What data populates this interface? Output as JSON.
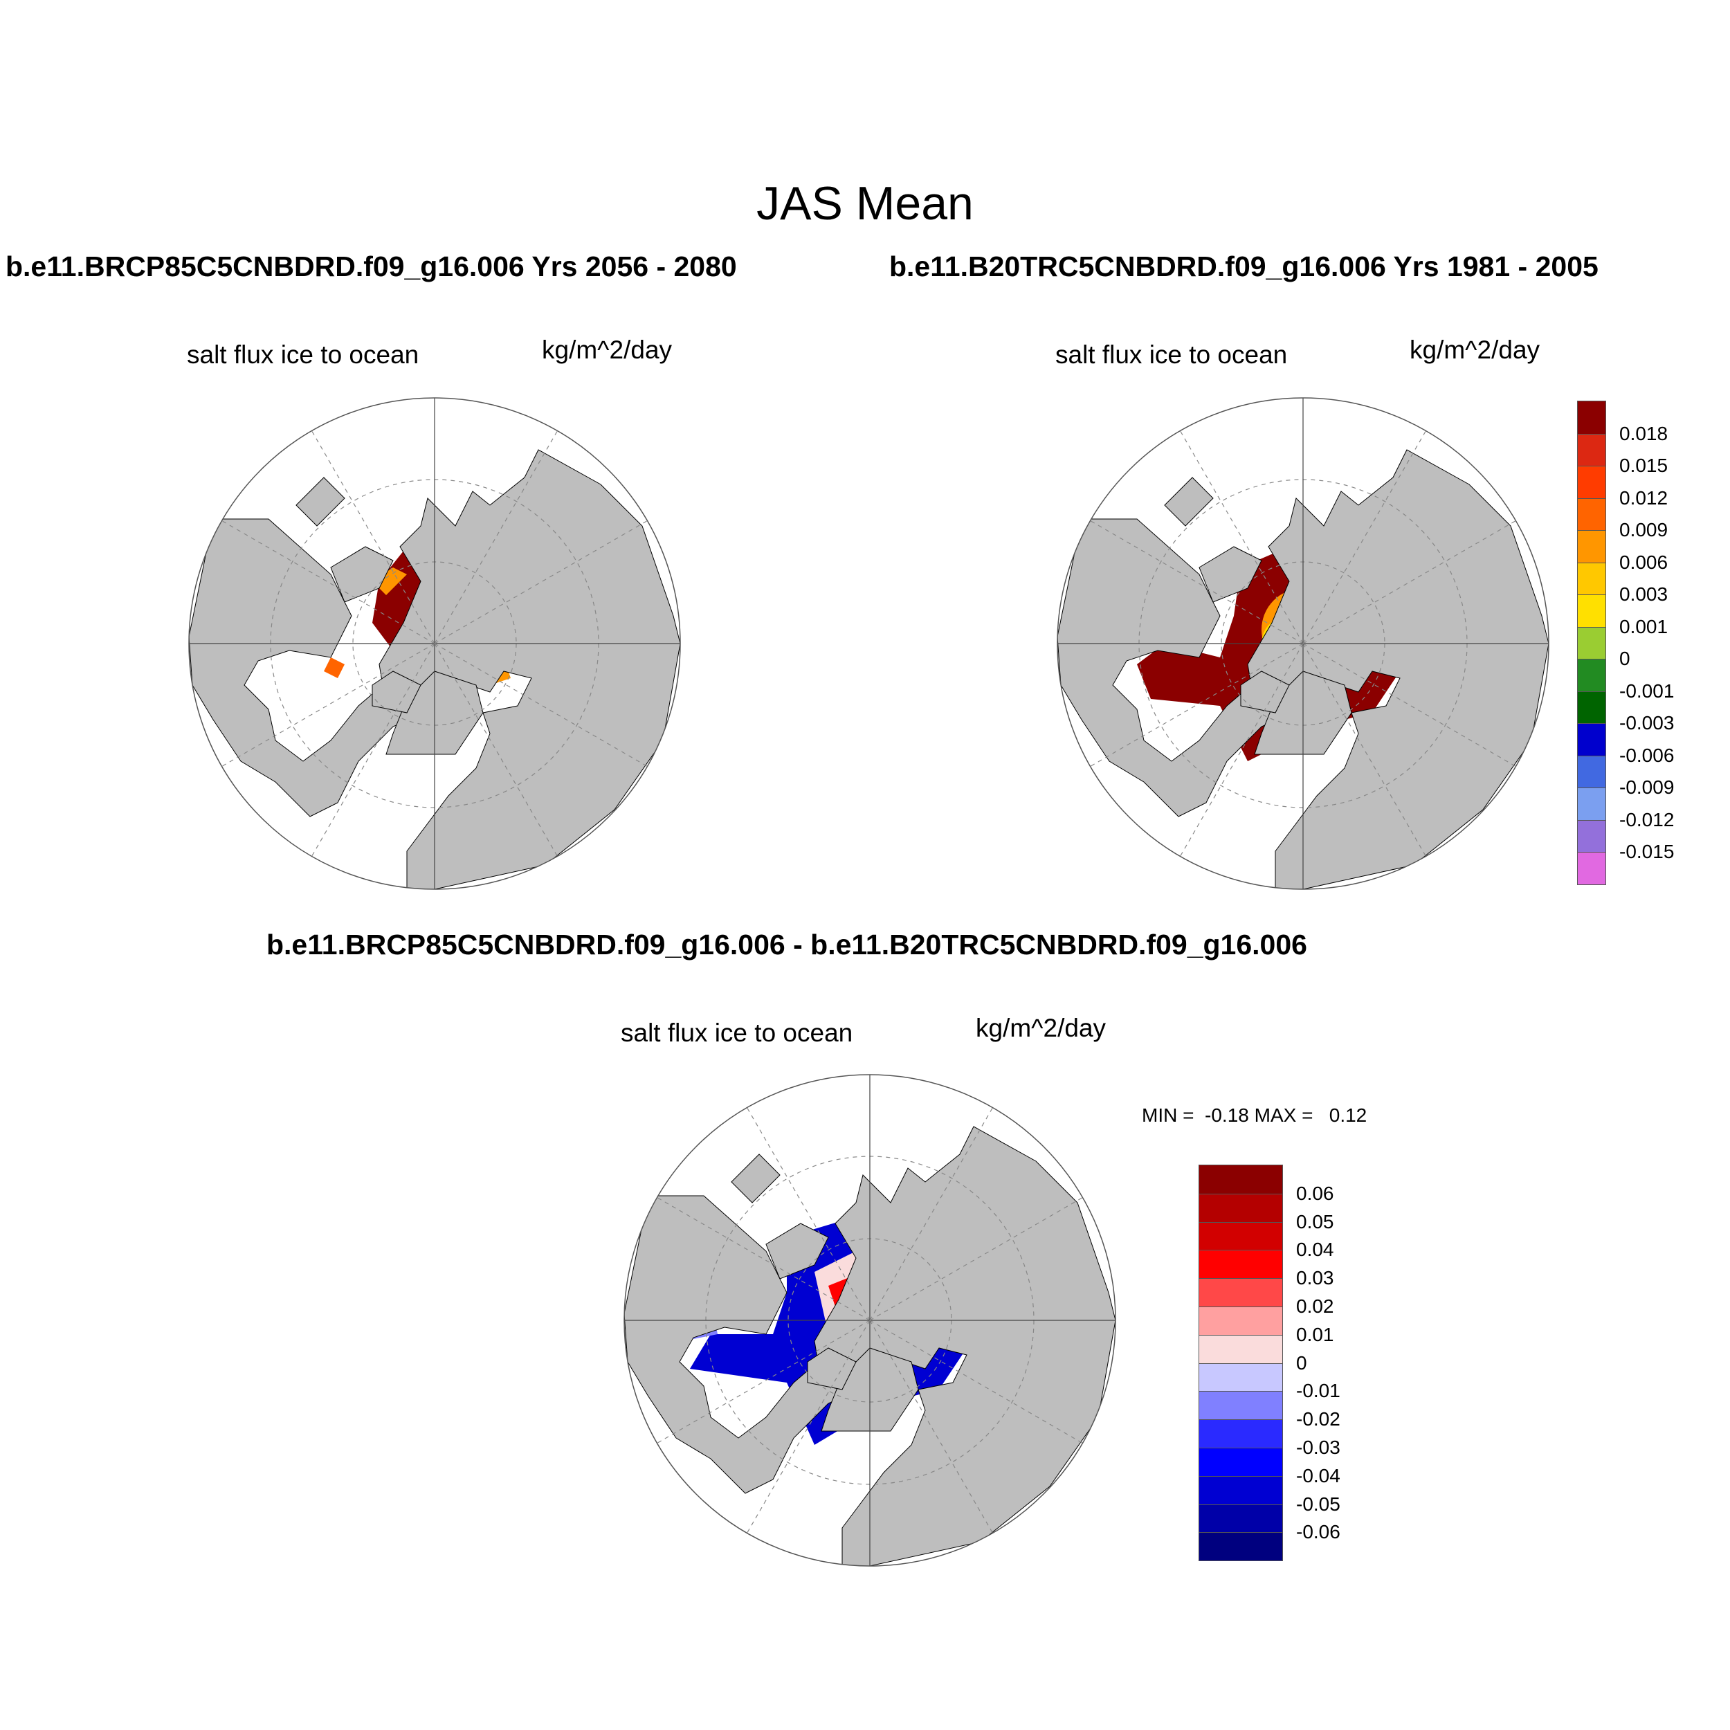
{
  "title": "JAS Mean",
  "panels": [
    {
      "id": "top-left",
      "header": "b.e11.BRCP85C5CNBDRD.f09_g16.006  Yrs 2056 - 2080",
      "variable": "salt flux ice to ocean",
      "units": "kg/m^2/day"
    },
    {
      "id": "top-right",
      "header": "b.e11.B20TRC5CNBDRD.f09_g16.006  Yrs 1981 - 2005",
      "variable": "salt flux ice to ocean",
      "units": "kg/m^2/day"
    },
    {
      "id": "bottom",
      "header": "b.e11.BRCP85C5CNBDRD.f09_g16.006 - b.e11.B20TRC5CNBDRD.f09_g16.006",
      "variable": "salt flux ice to ocean",
      "units": "kg/m^2/day",
      "minmax": "MIN =  -0.18 MAX =   0.12"
    }
  ],
  "legend_abs": {
    "colors": [
      "#e169e1",
      "#9370db",
      "#7b9ff0",
      "#4169e1",
      "#0000cd",
      "#006400",
      "#228b22",
      "#9acd32",
      "#ffe000",
      "#ffc800",
      "#ff9600",
      "#ff6400",
      "#ff3c00",
      "#dc2812",
      "#8b0000"
    ],
    "labels": [
      "-0.015",
      "-0.012",
      "-0.009",
      "-0.006",
      "-0.003",
      "-0.001",
      "0",
      "0.001",
      "0.003",
      "0.006",
      "0.009",
      "0.012",
      "0.015",
      "0.018"
    ]
  },
  "legend_diff": {
    "colors": [
      "#00007f",
      "#0000a8",
      "#0000d2",
      "#0000ff",
      "#2a2aff",
      "#8080ff",
      "#c8c8ff",
      "#fadcdc",
      "#ffa0a0",
      "#ff4848",
      "#ff0000",
      "#d20000",
      "#b40000",
      "#8b0000"
    ],
    "labels": [
      "-0.06",
      "-0.05",
      "-0.04",
      "-0.03",
      "-0.02",
      "-0.01",
      "0",
      "0.01",
      "0.02",
      "0.03",
      "0.04",
      "0.05",
      "0.06"
    ]
  },
  "colors": {
    "land": "#bebebe",
    "ocean": "#ffffff",
    "grid": "#888888"
  }
}
